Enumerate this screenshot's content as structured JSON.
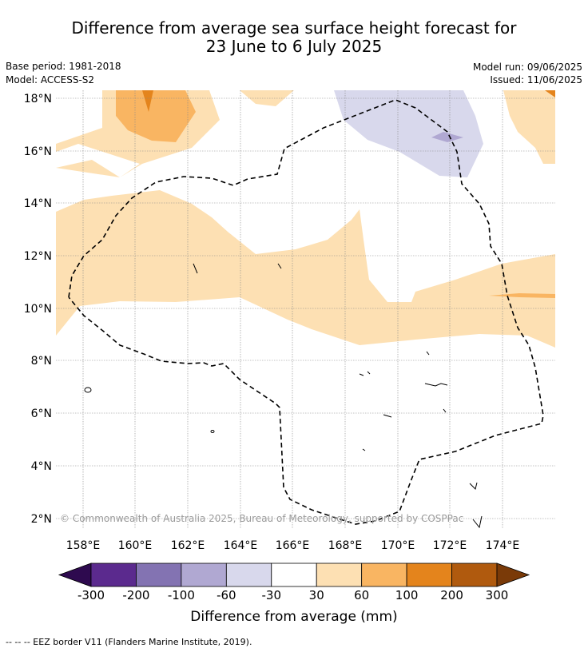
{
  "title_line1": "Difference from average sea surface height forecast for",
  "title_line2": "23 June to 6 July 2025",
  "base_period": "Base period: 1981-2018",
  "model": "Model: ACCESS-S2",
  "model_run": "Model run: 09/06/2025",
  "issued": "Issued: 11/06/2025",
  "lat_labels": [
    "18°N",
    "16°N",
    "14°N",
    "12°N",
    "10°N",
    "8°N",
    "6°N",
    "4°N",
    "2°N"
  ],
  "lon_labels": [
    "158°E",
    "160°E",
    "162°E",
    "164°E",
    "166°E",
    "168°E",
    "170°E",
    "172°E",
    "174°E"
  ],
  "copyright": "© Commonwealth of Australia 2025, Bureau of Meteorology, supported by COSPPac",
  "colorbar": {
    "title": "Difference from average (mm)",
    "ticks": [
      "-300",
      "-200",
      "-100",
      "-60",
      "-30",
      "30",
      "60",
      "100",
      "200",
      "300"
    ],
    "colors": [
      "#2e0a4f",
      "#5b2a8e",
      "#8373b2",
      "#b0a8d2",
      "#d8d8ec",
      "#ffffff",
      "#fde0b3",
      "#f9b562",
      "#e4841c",
      "#b05a0e",
      "#7a3a08"
    ]
  },
  "footnote": "--  --  -- EEZ border V11 (Flanders Marine Institute, 2019)."
}
